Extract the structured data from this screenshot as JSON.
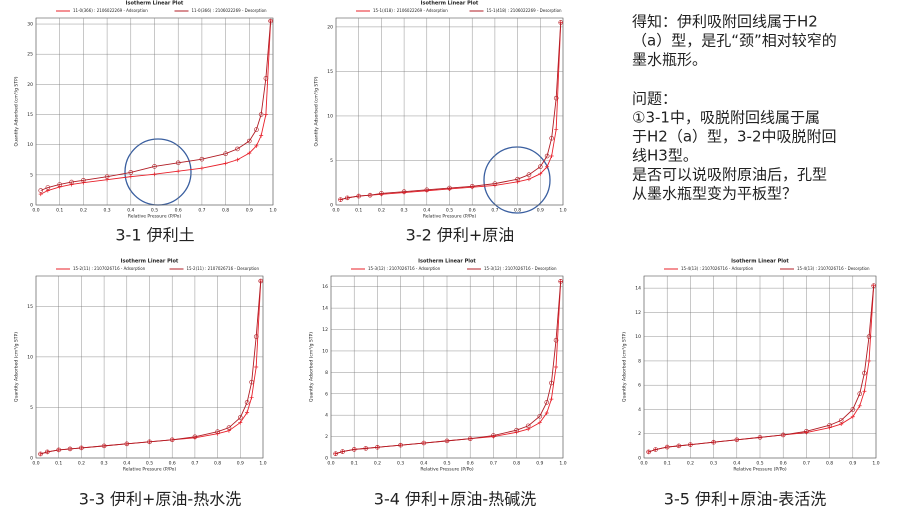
{
  "chart_data": [
    {
      "type": "line",
      "title": "Isotherm Linear Plot",
      "x_label": "Relative Pressure (P/Po)",
      "y_label": "Quantity Adsorbed (cm³/g STP)",
      "grid": true,
      "x": [
        0.02,
        0.05,
        0.1,
        0.15,
        0.2,
        0.3,
        0.4,
        0.5,
        0.6,
        0.7,
        0.8,
        0.85,
        0.9,
        0.93,
        0.95,
        0.97,
        0.99
      ],
      "series": [
        {
          "name": "11-0(366) : 2106022269 - Adsorption",
          "color": "#e8202a",
          "marker": "plus",
          "values": [
            1.8,
            2.4,
            3.0,
            3.4,
            3.7,
            4.2,
            4.7,
            5.1,
            5.6,
            6.1,
            6.9,
            7.5,
            8.6,
            9.8,
            11.5,
            15,
            30.5
          ]
        },
        {
          "name": "11-0(366) : 2106022269 - Desorption",
          "color": "#b01c24",
          "marker": "circle",
          "values": [
            2.4,
            2.9,
            3.4,
            3.8,
            4.1,
            4.7,
            5.4,
            6.4,
            7.0,
            7.6,
            8.5,
            9.3,
            10.6,
            12.5,
            15,
            21,
            30.5
          ]
        }
      ],
      "xlim": [
        0,
        1
      ],
      "xticks": [
        {
          "value": 0,
          "label": "0.0"
        },
        {
          "value": 0.1,
          "label": "0.1"
        },
        {
          "value": 0.2,
          "label": "0.2"
        },
        {
          "value": 0.3,
          "label": "0.3"
        },
        {
          "value": 0.4,
          "label": "0.4"
        },
        {
          "value": 0.5,
          "label": "0.5"
        },
        {
          "value": 0.6,
          "label": "0.6"
        },
        {
          "value": 0.7,
          "label": "0.7"
        },
        {
          "value": 0.8,
          "label": "0.8"
        },
        {
          "value": 0.9,
          "label": "0.9"
        },
        {
          "value": 1,
          "label": "1.0"
        }
      ],
      "ylim": [
        0,
        31
      ],
      "yticks": [
        0,
        5,
        10,
        15,
        20,
        25,
        30
      ]
    },
    {
      "type": "line",
      "title": "Isotherm Linear Plot",
      "x_label": "Relative Pressure (P/Po)",
      "y_label": "Quantity Adsorbed (cm³/g STP)",
      "grid": true,
      "x": [
        0.02,
        0.05,
        0.1,
        0.15,
        0.2,
        0.3,
        0.4,
        0.5,
        0.6,
        0.7,
        0.8,
        0.85,
        0.9,
        0.93,
        0.95,
        0.97,
        0.99
      ],
      "series": [
        {
          "name": "15-1(418) : 2106022269 - Adsorption",
          "color": "#e8202a",
          "marker": "plus",
          "values": [
            0.6,
            0.8,
            1.0,
            1.1,
            1.2,
            1.4,
            1.6,
            1.8,
            2.0,
            2.2,
            2.6,
            2.9,
            3.5,
            4.3,
            5.5,
            8.5,
            20.5
          ]
        },
        {
          "name": "15-1(418) : 2106022269 - Desorption",
          "color": "#b01c24",
          "marker": "circle",
          "values": [
            0.6,
            0.8,
            1.0,
            1.1,
            1.3,
            1.5,
            1.7,
            1.9,
            2.1,
            2.4,
            2.9,
            3.4,
            4.3,
            5.5,
            7.5,
            12,
            20.5
          ]
        }
      ],
      "xlim": [
        0,
        1
      ],
      "xticks": [
        {
          "value": 0,
          "label": "0.0"
        },
        {
          "value": 0.1,
          "label": "0.1"
        },
        {
          "value": 0.2,
          "label": "0.2"
        },
        {
          "value": 0.3,
          "label": "0.3"
        },
        {
          "value": 0.4,
          "label": "0.4"
        },
        {
          "value": 0.5,
          "label": "0.5"
        },
        {
          "value": 0.6,
          "label": "0.6"
        },
        {
          "value": 0.7,
          "label": "0.7"
        },
        {
          "value": 0.8,
          "label": "0.8"
        },
        {
          "value": 0.9,
          "label": "0.9"
        },
        {
          "value": 1,
          "label": "1.0"
        }
      ],
      "ylim": [
        0,
        21
      ],
      "yticks": [
        0,
        5,
        10,
        15,
        20
      ]
    },
    {
      "type": "line",
      "title": "Isotherm Linear Plot",
      "x_label": "Relative Pressure (P/Po)",
      "y_label": "Quantity Adsorbed (cm³/g STP)",
      "grid": true,
      "x": [
        0.02,
        0.05,
        0.1,
        0.15,
        0.2,
        0.3,
        0.4,
        0.5,
        0.6,
        0.7,
        0.8,
        0.85,
        0.9,
        0.93,
        0.95,
        0.97,
        0.99
      ],
      "series": [
        {
          "name": "15-2(11) : 2107026716 - Adsorption",
          "color": "#e8202a",
          "marker": "plus",
          "values": [
            0.4,
            0.6,
            0.8,
            0.9,
            1.0,
            1.2,
            1.4,
            1.6,
            1.8,
            2.0,
            2.4,
            2.7,
            3.5,
            4.5,
            6.0,
            9.0,
            17.5
          ]
        },
        {
          "name": "15-2(11) : 2107026716 - Desorption",
          "color": "#b01c24",
          "marker": "circle",
          "values": [
            0.4,
            0.6,
            0.8,
            0.9,
            1.0,
            1.2,
            1.4,
            1.6,
            1.8,
            2.1,
            2.6,
            3.0,
            4.0,
            5.5,
            7.5,
            12,
            17.5
          ]
        }
      ],
      "xlim": [
        0,
        1
      ],
      "xticks": [
        {
          "value": 0,
          "label": "0.0"
        },
        {
          "value": 0.1,
          "label": "0.1"
        },
        {
          "value": 0.2,
          "label": "0.2"
        },
        {
          "value": 0.3,
          "label": "0.3"
        },
        {
          "value": 0.4,
          "label": "0.4"
        },
        {
          "value": 0.5,
          "label": "0.5"
        },
        {
          "value": 0.6,
          "label": "0.6"
        },
        {
          "value": 0.7,
          "label": "0.7"
        },
        {
          "value": 0.8,
          "label": "0.8"
        },
        {
          "value": 0.9,
          "label": "0.9"
        },
        {
          "value": 1,
          "label": "1.0"
        }
      ],
      "ylim": [
        0,
        18
      ],
      "yticks": [
        0,
        5,
        10,
        15
      ]
    },
    {
      "type": "line",
      "title": "Isotherm Linear Plot",
      "x_label": "Relative Pressure (P/Po)",
      "y_label": "Quantity Adsorbed (cm³/g STP)",
      "grid": true,
      "x": [
        0.02,
        0.05,
        0.1,
        0.15,
        0.2,
        0.3,
        0.4,
        0.5,
        0.6,
        0.7,
        0.8,
        0.85,
        0.9,
        0.93,
        0.95,
        0.97,
        0.99
      ],
      "series": [
        {
          "name": "15-3(12) : 2107026716 - Adsorption",
          "color": "#e8202a",
          "marker": "plus",
          "values": [
            0.4,
            0.6,
            0.8,
            0.9,
            1.0,
            1.2,
            1.4,
            1.6,
            1.8,
            2.0,
            2.4,
            2.7,
            3.3,
            4.2,
            5.5,
            8.5,
            16.5
          ]
        },
        {
          "name": "15-3(12) : 2107026716 - Desorption",
          "color": "#b01c24",
          "marker": "circle",
          "values": [
            0.4,
            0.6,
            0.8,
            0.9,
            1.0,
            1.2,
            1.4,
            1.6,
            1.8,
            2.1,
            2.6,
            3.0,
            3.9,
            5.2,
            7.0,
            11,
            16.5
          ]
        }
      ],
      "xlim": [
        0,
        1
      ],
      "xticks": [
        {
          "value": 0,
          "label": "0.0"
        },
        {
          "value": 0.1,
          "label": "0.1"
        },
        {
          "value": 0.2,
          "label": "0.2"
        },
        {
          "value": 0.3,
          "label": "0.3"
        },
        {
          "value": 0.4,
          "label": "0.4"
        },
        {
          "value": 0.5,
          "label": "0.5"
        },
        {
          "value": 0.6,
          "label": "0.6"
        },
        {
          "value": 0.7,
          "label": "0.7"
        },
        {
          "value": 0.8,
          "label": "0.8"
        },
        {
          "value": 0.9,
          "label": "0.9"
        },
        {
          "value": 1,
          "label": "1.0"
        }
      ],
      "ylim": [
        0,
        17
      ],
      "yticks": [
        0,
        2,
        4,
        6,
        8,
        10,
        12,
        14,
        16
      ]
    },
    {
      "type": "line",
      "title": "Isotherm Linear Plot",
      "x_label": "Relative Pressure (P/Po)",
      "y_label": "Quantity Adsorbed (cm³/g STP)",
      "grid": true,
      "x": [
        0.02,
        0.05,
        0.1,
        0.15,
        0.2,
        0.3,
        0.4,
        0.5,
        0.6,
        0.7,
        0.8,
        0.85,
        0.9,
        0.93,
        0.95,
        0.97,
        0.99
      ],
      "series": [
        {
          "name": "15-4(13) : 2107026716 - Adsorption",
          "color": "#e8202a",
          "marker": "plus",
          "values": [
            0.5,
            0.7,
            0.9,
            1.0,
            1.1,
            1.3,
            1.5,
            1.7,
            1.9,
            2.1,
            2.5,
            2.8,
            3.4,
            4.3,
            5.5,
            8.0,
            14.2
          ]
        },
        {
          "name": "15-4(13) : 2107026716 - Desorption",
          "color": "#b01c24",
          "marker": "circle",
          "values": [
            0.5,
            0.7,
            0.9,
            1.0,
            1.1,
            1.3,
            1.5,
            1.7,
            1.9,
            2.2,
            2.7,
            3.1,
            4.0,
            5.3,
            7.0,
            10,
            14.2
          ]
        }
      ],
      "xlim": [
        0,
        1
      ],
      "xticks": [
        {
          "value": 0,
          "label": "0.0"
        },
        {
          "value": 0.1,
          "label": "0.1"
        },
        {
          "value": 0.2,
          "label": "0.2"
        },
        {
          "value": 0.3,
          "label": "0.3"
        },
        {
          "value": 0.4,
          "label": "0.4"
        },
        {
          "value": 0.5,
          "label": "0.5"
        },
        {
          "value": 0.6,
          "label": "0.6"
        },
        {
          "value": 0.7,
          "label": "0.7"
        },
        {
          "value": 0.8,
          "label": "0.8"
        },
        {
          "value": 0.9,
          "label": "0.9"
        },
        {
          "value": 1,
          "label": "1.0"
        }
      ],
      "ylim": [
        0,
        15
      ],
      "yticks": [
        0,
        2,
        4,
        6,
        8,
        10,
        12,
        14
      ]
    }
  ],
  "captions": [
    "3-1 伊利土",
    "3-2 伊利+原油",
    "3-3 伊利+原油-热水洗",
    "3-4 伊利+原油-热碱洗",
    "3-5 伊利+原油-表活洗"
  ],
  "note": [
    "得知：伊利吸附回线属于H2",
    "（a）型，是孔“颈”相对较窄的",
    "墨水瓶形。",
    "问题：",
    "①3-1中，吸脱附回线属于属",
    "于H2（a）型，3-2中吸脱附回",
    "线H3型。",
    "是否可以说吸附原油后，孔型",
    "从墨水瓶型变为平板型？"
  ]
}
